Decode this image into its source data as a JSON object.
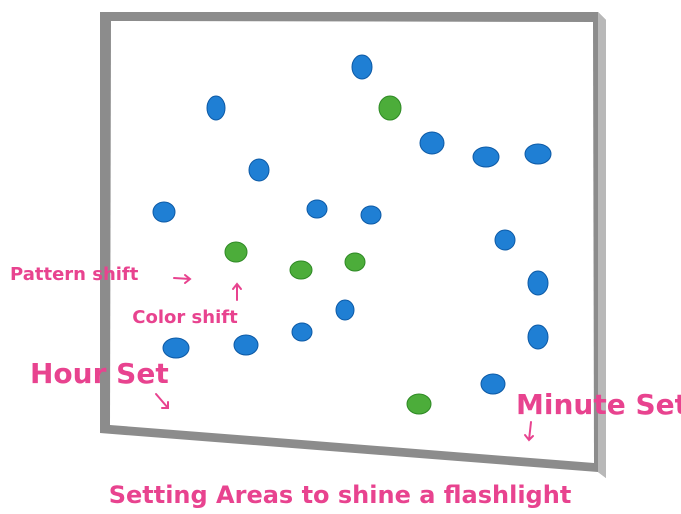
{
  "labels": {
    "pattern_shift": "Pattern shift",
    "color_shift": "Color shift",
    "hour_set": "Hour Set",
    "minute_set": "Minute Set"
  },
  "caption": "Setting Areas to shine a flashlight"
}
